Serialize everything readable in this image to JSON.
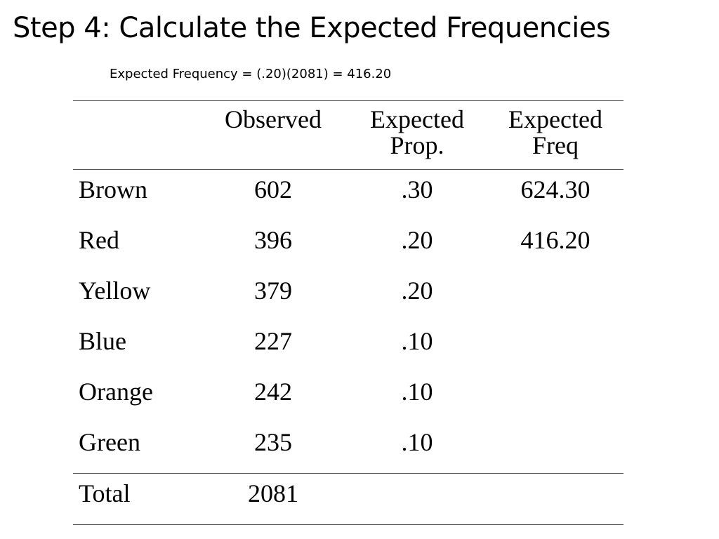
{
  "slide": {
    "title": "Step 4: Calculate the Expected Frequencies",
    "formula": "Expected Frequency = (.20)(2081) = 416.20"
  },
  "table": {
    "headers": [
      {
        "line1": "",
        "line2": ""
      },
      {
        "line1": "Observed",
        "line2": ""
      },
      {
        "line1": "Expected",
        "line2": "Prop."
      },
      {
        "line1": "Expected",
        "line2": "Freq"
      }
    ],
    "rows": [
      {
        "label": "Brown",
        "observed": "602",
        "prop": ".30",
        "freq": "624.30"
      },
      {
        "label": "Red",
        "observed": "396",
        "prop": ".20",
        "freq": "416.20"
      },
      {
        "label": "Yellow",
        "observed": "379",
        "prop": ".20",
        "freq": ""
      },
      {
        "label": "Blue",
        "observed": "227",
        "prop": ".10",
        "freq": ""
      },
      {
        "label": "Orange",
        "observed": "242",
        "prop": ".10",
        "freq": ""
      },
      {
        "label": "Green",
        "observed": "235",
        "prop": ".10",
        "freq": ""
      }
    ],
    "total": {
      "label": "Total",
      "observed": "2081",
      "prop": "",
      "freq": ""
    }
  }
}
